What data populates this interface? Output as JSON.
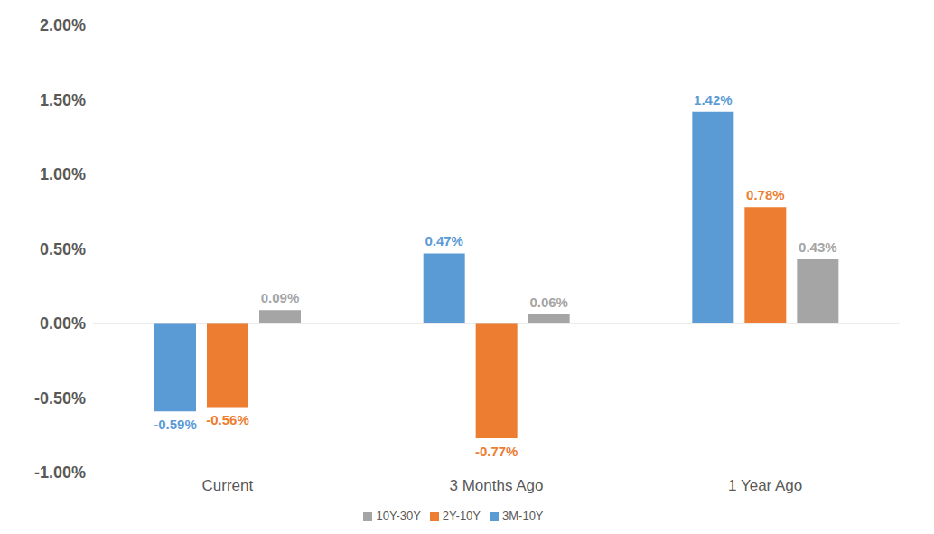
{
  "chart_data": {
    "type": "bar",
    "categories": [
      "Current",
      "3 Months Ago",
      "1 Year Ago"
    ],
    "series": [
      {
        "name": "3M-10Y",
        "color": "#5b9bd5",
        "values": [
          -0.59,
          0.47,
          1.42
        ],
        "value_labels": [
          "-0.59%",
          "0.47%",
          "1.42%"
        ]
      },
      {
        "name": "2Y-10Y",
        "color": "#ed7d31",
        "values": [
          -0.56,
          -0.77,
          0.78
        ],
        "value_labels": [
          "-0.56%",
          "-0.77%",
          "0.78%"
        ]
      },
      {
        "name": "10Y-30Y",
        "color": "#a5a5a5",
        "values": [
          0.09,
          0.06,
          0.43
        ],
        "value_labels": [
          "0.09%",
          "0.06%",
          "0.43%"
        ]
      }
    ],
    "ylim": [
      -1,
      2
    ],
    "yticks": [
      {
        "value": -1,
        "label": "-1.00%"
      },
      {
        "value": -0.5,
        "label": "-0.50%"
      },
      {
        "value": 0,
        "label": "0.00%"
      },
      {
        "value": 0.5,
        "label": "0.50%"
      },
      {
        "value": 1,
        "label": "1.00%"
      },
      {
        "value": 1.5,
        "label": "1.50%"
      },
      {
        "value": 2,
        "label": "2.00%"
      }
    ],
    "grid": false,
    "legend": "bottom",
    "data_labels": true
  }
}
